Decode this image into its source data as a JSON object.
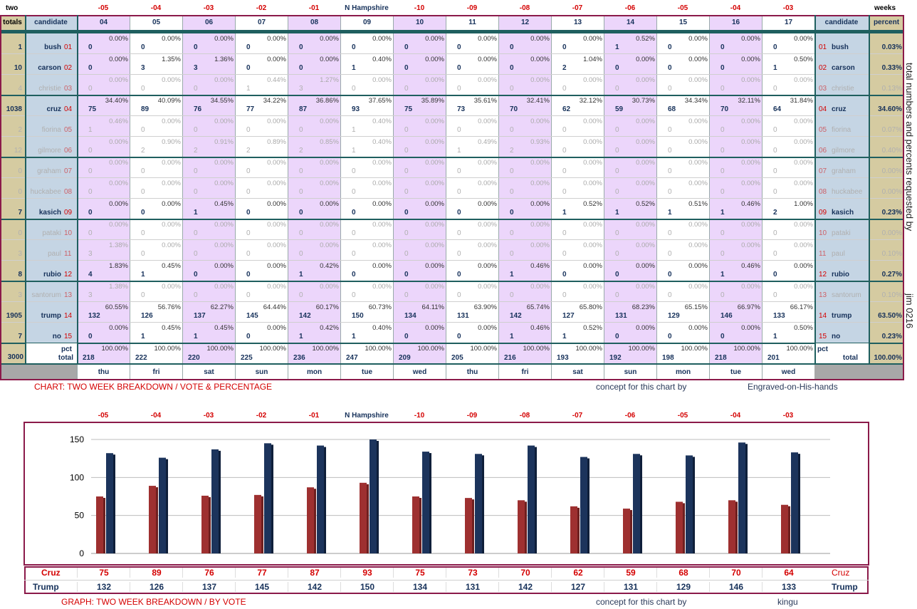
{
  "header": {
    "left": "two",
    "right": "weeks",
    "center": "N Hampshire",
    "offsets": [
      "-05",
      "-04",
      "-03",
      "-02",
      "-01",
      "N Hampshire",
      "-10",
      "-09",
      "-08",
      "-07",
      "-06",
      "-05",
      "-04",
      "-03"
    ]
  },
  "table": {
    "col_totals": "totals",
    "col_candidate": "candidate",
    "col_percent": "percent",
    "days": [
      "04",
      "05",
      "06",
      "07",
      "08",
      "09",
      "10",
      "11",
      "12",
      "13",
      "14",
      "15",
      "16",
      "17"
    ],
    "weekdays": [
      "thu",
      "fri",
      "sat",
      "sun",
      "mon",
      "tue",
      "wed",
      "thu",
      "fri",
      "sat",
      "sun",
      "mon",
      "tue",
      "wed"
    ],
    "rows": [
      {
        "total": "1",
        "name": "bush",
        "num": "01",
        "pct": "0.03%",
        "bold": true,
        "votes": [
          "0",
          "0",
          "0",
          "0",
          "0",
          "0",
          "0",
          "0",
          "0",
          "0",
          "1",
          "0",
          "0",
          "0"
        ],
        "pcts": [
          "0.00%",
          "0.00%",
          "0.00%",
          "0.00%",
          "0.00%",
          "0.00%",
          "0.00%",
          "0.00%",
          "0.00%",
          "0.00%",
          "0.52%",
          "0.00%",
          "0.00%",
          "0.00%"
        ]
      },
      {
        "total": "10",
        "name": "carson",
        "num": "02",
        "pct": "0.33%",
        "bold": true,
        "votes": [
          "0",
          "3",
          "3",
          "0",
          "0",
          "1",
          "0",
          "0",
          "0",
          "2",
          "0",
          "0",
          "0",
          "1"
        ],
        "pcts": [
          "0.00%",
          "1.35%",
          "1.36%",
          "0.00%",
          "0.00%",
          "0.40%",
          "0.00%",
          "0.00%",
          "0.00%",
          "1.04%",
          "0.00%",
          "0.00%",
          "0.00%",
          "0.50%"
        ]
      },
      {
        "total": "4",
        "name": "christie",
        "num": "03",
        "pct": "0.13%",
        "bold": false,
        "votes": [
          "0",
          "0",
          "0",
          "1",
          "3",
          "0",
          "0",
          "0",
          "0",
          "0",
          "0",
          "0",
          "0",
          "0"
        ],
        "pcts": [
          "0.00%",
          "0.00%",
          "0.00%",
          "0.44%",
          "1.27%",
          "0.00%",
          "0.00%",
          "0.00%",
          "0.00%",
          "0.00%",
          "0.00%",
          "0.00%",
          "0.00%",
          "0.00%"
        ]
      },
      {
        "total": "1038",
        "name": "cruz",
        "num": "04",
        "pct": "34.60%",
        "bold": true,
        "votes": [
          "75",
          "89",
          "76",
          "77",
          "87",
          "93",
          "75",
          "73",
          "70",
          "62",
          "59",
          "68",
          "70",
          "64"
        ],
        "pcts": [
          "34.40%",
          "40.09%",
          "34.55%",
          "34.22%",
          "36.86%",
          "37.65%",
          "35.89%",
          "35.61%",
          "32.41%",
          "32.12%",
          "30.73%",
          "34.34%",
          "32.11%",
          "31.84%"
        ]
      },
      {
        "total": "2",
        "name": "fiorina",
        "num": "05",
        "pct": "0.07%",
        "bold": false,
        "votes": [
          "1",
          "0",
          "0",
          "0",
          "0",
          "1",
          "0",
          "0",
          "0",
          "0",
          "0",
          "0",
          "0",
          "0"
        ],
        "pcts": [
          "0.46%",
          "0.00%",
          "0.00%",
          "0.00%",
          "0.00%",
          "0.40%",
          "0.00%",
          "0.00%",
          "0.00%",
          "0.00%",
          "0.00%",
          "0.00%",
          "0.00%",
          "0.00%"
        ]
      },
      {
        "total": "12",
        "name": "gilmore",
        "num": "06",
        "pct": "0.40%",
        "bold": false,
        "votes": [
          "0",
          "2",
          "2",
          "2",
          "2",
          "1",
          "0",
          "1",
          "2",
          "0",
          "0",
          "0",
          "0",
          "0"
        ],
        "pcts": [
          "0.00%",
          "0.90%",
          "0.91%",
          "0.89%",
          "0.85%",
          "0.40%",
          "0.00%",
          "0.49%",
          "0.93%",
          "0.00%",
          "0.00%",
          "0.00%",
          "0.00%",
          "0.00%"
        ]
      },
      {
        "total": "0",
        "name": "graham",
        "num": "07",
        "pct": "0.00%",
        "bold": false,
        "votes": [
          "0",
          "0",
          "0",
          "0",
          "0",
          "0",
          "0",
          "0",
          "0",
          "0",
          "0",
          "0",
          "0",
          "0"
        ],
        "pcts": [
          "0.00%",
          "0.00%",
          "0.00%",
          "0.00%",
          "0.00%",
          "0.00%",
          "0.00%",
          "0.00%",
          "0.00%",
          "0.00%",
          "0.00%",
          "0.00%",
          "0.00%",
          "0.00%"
        ]
      },
      {
        "total": "0",
        "name": "huckabee",
        "num": "08",
        "pct": "0.00%",
        "bold": false,
        "votes": [
          "0",
          "0",
          "0",
          "0",
          "0",
          "0",
          "0",
          "0",
          "0",
          "0",
          "0",
          "0",
          "0",
          "0"
        ],
        "pcts": [
          "0.00%",
          "0.00%",
          "0.00%",
          "0.00%",
          "0.00%",
          "0.00%",
          "0.00%",
          "0.00%",
          "0.00%",
          "0.00%",
          "0.00%",
          "0.00%",
          "0.00%",
          "0.00%"
        ]
      },
      {
        "total": "7",
        "name": "kasich",
        "num": "09",
        "pct": "0.23%",
        "bold": true,
        "votes": [
          "0",
          "0",
          "1",
          "0",
          "0",
          "0",
          "0",
          "0",
          "0",
          "1",
          "1",
          "1",
          "1",
          "2"
        ],
        "pcts": [
          "0.00%",
          "0.00%",
          "0.45%",
          "0.00%",
          "0.00%",
          "0.00%",
          "0.00%",
          "0.00%",
          "0.00%",
          "0.52%",
          "0.52%",
          "0.51%",
          "0.46%",
          "1.00%"
        ]
      },
      {
        "total": "0",
        "name": "pataki",
        "num": "10",
        "pct": "0.00%",
        "bold": false,
        "votes": [
          "0",
          "0",
          "0",
          "0",
          "0",
          "0",
          "0",
          "0",
          "0",
          "0",
          "0",
          "0",
          "0",
          "0"
        ],
        "pcts": [
          "0.00%",
          "0.00%",
          "0.00%",
          "0.00%",
          "0.00%",
          "0.00%",
          "0.00%",
          "0.00%",
          "0.00%",
          "0.00%",
          "0.00%",
          "0.00%",
          "0.00%",
          "0.00%"
        ]
      },
      {
        "total": "3",
        "name": "paul",
        "num": "11",
        "pct": "0.10%",
        "bold": false,
        "votes": [
          "3",
          "0",
          "0",
          "0",
          "0",
          "0",
          "0",
          "0",
          "0",
          "0",
          "0",
          "0",
          "0",
          "0"
        ],
        "pcts": [
          "1.38%",
          "0.00%",
          "0.00%",
          "0.00%",
          "0.00%",
          "0.00%",
          "0.00%",
          "0.00%",
          "0.00%",
          "0.00%",
          "0.00%",
          "0.00%",
          "0.00%",
          "0.00%"
        ]
      },
      {
        "total": "8",
        "name": "rubio",
        "num": "12",
        "pct": "0.27%",
        "bold": true,
        "votes": [
          "4",
          "1",
          "0",
          "0",
          "1",
          "0",
          "0",
          "0",
          "1",
          "0",
          "0",
          "0",
          "1",
          "0"
        ],
        "pcts": [
          "1.83%",
          "0.45%",
          "0.00%",
          "0.00%",
          "0.42%",
          "0.00%",
          "0.00%",
          "0.00%",
          "0.46%",
          "0.00%",
          "0.00%",
          "0.00%",
          "0.46%",
          "0.00%"
        ]
      },
      {
        "total": "3",
        "name": "santorum",
        "num": "13",
        "pct": "0.10%",
        "bold": false,
        "votes": [
          "3",
          "0",
          "0",
          "0",
          "0",
          "0",
          "0",
          "0",
          "0",
          "0",
          "0",
          "0",
          "0",
          "0"
        ],
        "pcts": [
          "1.38%",
          "0.00%",
          "0.00%",
          "0.00%",
          "0.00%",
          "0.00%",
          "0.00%",
          "0.00%",
          "0.00%",
          "0.00%",
          "0.00%",
          "0.00%",
          "0.00%",
          "0.00%"
        ]
      },
      {
        "total": "1905",
        "name": "trump",
        "num": "14",
        "pct": "63.50%",
        "bold": true,
        "votes": [
          "132",
          "126",
          "137",
          "145",
          "142",
          "150",
          "134",
          "131",
          "142",
          "127",
          "131",
          "129",
          "146",
          "133"
        ],
        "pcts": [
          "60.55%",
          "56.76%",
          "62.27%",
          "64.44%",
          "60.17%",
          "60.73%",
          "64.11%",
          "63.90%",
          "65.74%",
          "65.80%",
          "68.23%",
          "65.15%",
          "66.97%",
          "66.17%"
        ]
      },
      {
        "total": "7",
        "name": "no",
        "num": "15",
        "pct": "0.23%",
        "bold": true,
        "votes": [
          "0",
          "1",
          "1",
          "0",
          "1",
          "1",
          "0",
          "0",
          "1",
          "1",
          "0",
          "0",
          "0",
          "1"
        ],
        "pcts": [
          "0.00%",
          "0.45%",
          "0.45%",
          "0.00%",
          "0.42%",
          "0.40%",
          "0.00%",
          "0.00%",
          "0.46%",
          "0.52%",
          "0.00%",
          "0.00%",
          "0.00%",
          "0.50%"
        ]
      }
    ],
    "total_row": {
      "total": "3000",
      "label": "total",
      "pct_label": "pct",
      "pct": "100.00%",
      "votes": [
        "218",
        "222",
        "220",
        "225",
        "236",
        "247",
        "209",
        "205",
        "216",
        "193",
        "192",
        "198",
        "218",
        "201"
      ],
      "pcts": [
        "100.00%",
        "100.00%",
        "100.00%",
        "100.00%",
        "100.00%",
        "100.00%",
        "100.00%",
        "100.00%",
        "100.00%",
        "100.00%",
        "100.00%",
        "100.00%",
        "100.00%",
        "100.00%"
      ]
    }
  },
  "side_text": {
    "requested": "total numbers and percents requested by",
    "author": "jim 0216"
  },
  "captions": {
    "chart1_title": "CHART: TWO WEEK BREAKDOWN / VOTE & PERCENTAGE",
    "chart1_concept": "concept for this chart by",
    "chart1_author": "Engraved-on-His-hands",
    "graph_title": "GRAPH: TWO WEEK BREAKDOWN / BY VOTE",
    "graph_concept": "concept for this chart by",
    "graph_author": "kingu"
  },
  "colors": {
    "accent_border": "#8b1a4a",
    "teal_border": "#1f5f5f",
    "tan": "#d5cba1",
    "blue_panel": "#c5d5e4",
    "lavender": "#ecd6fb",
    "cruz_bar": "#9e3030",
    "trump_bar": "#1c345c",
    "red_text": "#d40000"
  },
  "chart_data": {
    "type": "bar",
    "title": "N Hampshire",
    "categories": [
      "-05",
      "-04",
      "-03",
      "-02",
      "-01",
      "N Hampshire",
      "-10",
      "-09",
      "-08",
      "-07",
      "-06",
      "-05",
      "-04",
      "-03"
    ],
    "series": [
      {
        "name": "Cruz",
        "values": [
          75,
          89,
          76,
          77,
          87,
          93,
          75,
          73,
          70,
          62,
          59,
          68,
          70,
          64
        ]
      },
      {
        "name": "Trump",
        "values": [
          132,
          126,
          137,
          145,
          142,
          150,
          134,
          131,
          142,
          127,
          131,
          129,
          146,
          133
        ]
      }
    ],
    "ylim": [
      0,
      150
    ],
    "yticks": [
      "0",
      "50",
      "100",
      "150"
    ],
    "grid": true,
    "legend": "table-below"
  }
}
